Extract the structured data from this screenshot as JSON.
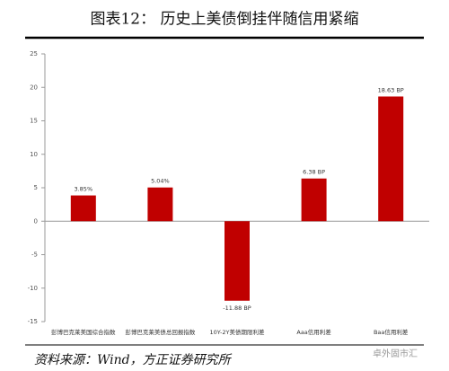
{
  "chart_data": {
    "type": "bar",
    "title": "图表12：      历史上美债倒挂伴随信用紧缩",
    "categories": [
      "彭博巴克莱美国综合指数",
      "彭博巴克莱美债总回报指数",
      "10Y-2Y美债期限利差",
      "Aaa信用利差",
      "Baa信用利差"
    ],
    "values": [
      3.85,
      5.04,
      -11.88,
      6.38,
      18.63
    ],
    "value_labels": [
      "3.85%",
      "5.04%",
      "-11.88 BP",
      "6.38 BP",
      "18.63 BP"
    ],
    "color": "#c00000",
    "ylim": [
      -15,
      25
    ],
    "yticks": [
      -15,
      -10,
      -5,
      0,
      5,
      10,
      15,
      20,
      25
    ],
    "source": "资料来源：Wind，方正证券研究所",
    "watermark": "卓外固市汇"
  }
}
